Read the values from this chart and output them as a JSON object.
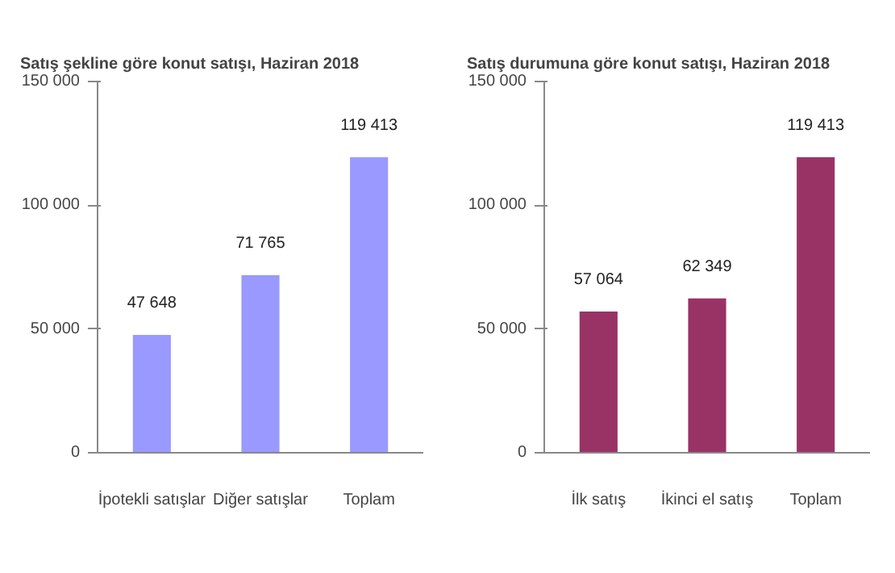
{
  "chart_data": [
    {
      "type": "bar",
      "title": "Satış şekline göre konut satışı, Haziran 2018",
      "categories": [
        "İpotekli satışlar",
        "Diğer satışlar",
        "Toplam"
      ],
      "values": [
        47648,
        71765,
        119413
      ],
      "color": "#9999ff",
      "value_labels": [
        "47 648",
        "71 765",
        "119 413"
      ],
      "ylim": [
        0,
        150000
      ],
      "yticks": [
        0,
        {
          "value": 50000,
          "label": "50 000"
        },
        {
          "value": 100000,
          "label": "100 000"
        },
        {
          "value": 150000,
          "label": "150 000"
        }
      ],
      "grid": false
    },
    {
      "type": "bar",
      "title": "Satış durumuna göre konut satışı, Haziran 2018",
      "categories": [
        "İlk satış",
        "İkinci el satış",
        "Toplam"
      ],
      "values": [
        57064,
        62349,
        119413
      ],
      "color": "#993366",
      "value_labels": [
        "57 064",
        "62 349",
        "119 413"
      ],
      "ylim": [
        0,
        150000
      ],
      "yticks": [
        0,
        {
          "value": 50000,
          "label": "50 000"
        },
        {
          "value": 100000,
          "label": "100 000"
        },
        {
          "value": 150000,
          "label": "150 000"
        }
      ],
      "grid": false
    }
  ]
}
